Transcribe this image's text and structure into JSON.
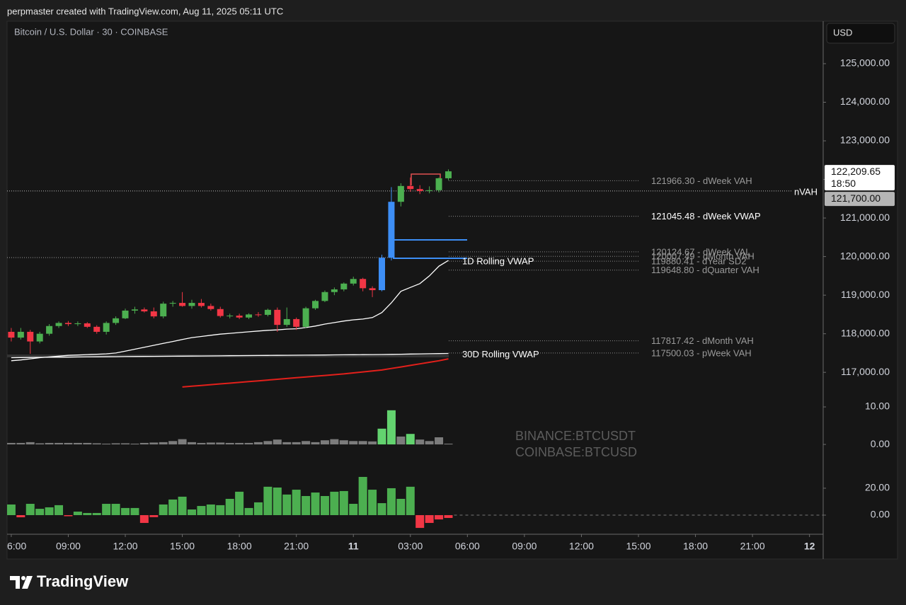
{
  "header": "perpmaster created with TradingView.com, Aug 11, 2025 05:11 UTC",
  "brand": "TradingView",
  "currency_button": "USD",
  "watermark": [
    "BINANCE:BTCUSDT",
    "COINBASE:BTCUSD"
  ],
  "chart_data": [
    {
      "type": "candlestick",
      "title": "Bitcoin / U.S. Dollar · 30 · COINBASE",
      "x": [
        6,
        6.5,
        7,
        7.5,
        8,
        8.5,
        9,
        9.5,
        10,
        10.5,
        11,
        11.5,
        12,
        12.5,
        13,
        13.5,
        14,
        14.5,
        15,
        15.5,
        16,
        16.5,
        17,
        17.5,
        18,
        18.5,
        19,
        19.5,
        20,
        20.5,
        21,
        21.5,
        22,
        22.5,
        23,
        23.5,
        24,
        24.5,
        25,
        25.5,
        26,
        26.5,
        27,
        27.5,
        28,
        28.5,
        29
      ],
      "open": [
        118050,
        117900,
        118050,
        117800,
        118000,
        118200,
        118280,
        118250,
        118270,
        118180,
        118050,
        118280,
        118400,
        118600,
        118630,
        118580,
        118450,
        118780,
        118800,
        118720,
        118800,
        118720,
        118640,
        118460,
        118470,
        118420,
        118500,
        118490,
        118620,
        118230,
        118380,
        118180,
        118660,
        118850,
        119080,
        119150,
        119300,
        119420,
        119180,
        119130,
        119970,
        121420,
        121830,
        121750,
        121700,
        121720,
        122030
      ],
      "high": [
        118150,
        118150,
        118100,
        118050,
        118250,
        118320,
        118330,
        118320,
        118300,
        118220,
        118320,
        118450,
        118650,
        118700,
        118680,
        118680,
        118830,
        118850,
        119080,
        118880,
        118900,
        118780,
        118700,
        118520,
        118520,
        118530,
        118560,
        118650,
        118680,
        118680,
        118420,
        118700,
        118880,
        119120,
        119200,
        119330,
        119480,
        119450,
        119230,
        120050,
        121800,
        121900,
        122050,
        121850,
        121820,
        122050,
        122260
      ],
      "low": [
        117800,
        117850,
        117480,
        117750,
        117950,
        118150,
        118200,
        118200,
        118150,
        118000,
        117980,
        118230,
        118380,
        118520,
        118550,
        118400,
        118400,
        118700,
        118700,
        118650,
        118680,
        118600,
        118420,
        118400,
        118380,
        118380,
        118440,
        118450,
        118050,
        118180,
        118100,
        118150,
        118620,
        118820,
        119000,
        119100,
        119250,
        119100,
        118950,
        119100,
        119900,
        121300,
        121680,
        121620,
        121640,
        121660,
        121980
      ],
      "close": [
        117900,
        118050,
        117800,
        118000,
        118200,
        118280,
        118250,
        118270,
        118180,
        118050,
        118280,
        118400,
        118600,
        118630,
        118580,
        118450,
        118780,
        118800,
        118720,
        118800,
        118720,
        118640,
        118460,
        118470,
        118420,
        118500,
        118490,
        118620,
        118230,
        118380,
        118180,
        118660,
        118850,
        119080,
        119150,
        119300,
        119420,
        119180,
        119130,
        119970,
        121420,
        121830,
        121750,
        121700,
        121720,
        122030,
        122209.65
      ],
      "colors": [
        "#f23645",
        "#4caf50",
        "#f23645",
        "#4caf50",
        "#4caf50",
        "#4caf50",
        "#f23645",
        "#4caf50",
        "#f23645",
        "#f23645",
        "#4caf50",
        "#4caf50",
        "#4caf50",
        "#4caf50",
        "#f23645",
        "#f23645",
        "#4caf50",
        "#4caf50",
        "#f23645",
        "#4caf50",
        "#f23645",
        "#f23645",
        "#f23645",
        "#4caf50",
        "#f23645",
        "#4caf50",
        "#f23645",
        "#4caf50",
        "#f23645",
        "#4caf50",
        "#f23645",
        "#4caf50",
        "#4caf50",
        "#4caf50",
        "#4caf50",
        "#4caf50",
        "#4caf50",
        "#f23645",
        "#f23645",
        "#3d8ef5",
        "#3d8ef5",
        "#4caf50",
        "#f23645",
        "#f23645",
        "#4caf50",
        "#4caf50",
        "#4caf50"
      ],
      "xlim": [
        5.78,
        48.72
      ],
      "xticks": [
        {
          "value": 6,
          "label": "6:00"
        },
        {
          "value": 9,
          "label": "09:00"
        },
        {
          "value": 12,
          "label": "12:00"
        },
        {
          "value": 15,
          "label": "15:00"
        },
        {
          "value": 18,
          "label": "18:00"
        },
        {
          "value": 21,
          "label": "21:00"
        },
        {
          "value": 24,
          "label": "11"
        },
        {
          "value": 27,
          "label": "03:00"
        },
        {
          "value": 30,
          "label": "06:00"
        },
        {
          "value": 33,
          "label": "09:00"
        },
        {
          "value": 36,
          "label": "12:00"
        },
        {
          "value": 39,
          "label": "15:00"
        },
        {
          "value": 42,
          "label": "18:00"
        },
        {
          "value": 45,
          "label": "21:00"
        },
        {
          "value": 48,
          "label": "12"
        }
      ],
      "ylim": [
        116600,
        126100
      ],
      "yticks": [
        {
          "value": 117000,
          "label": "117,000.00"
        },
        {
          "value": 118000,
          "label": "118,000.00"
        },
        {
          "value": 119000,
          "label": "119,000.00"
        },
        {
          "value": 120000,
          "label": "120,000.00"
        },
        {
          "value": 121000,
          "label": "121,000.00"
        },
        {
          "value": 122000,
          "label": "122,000.00"
        },
        {
          "value": 123000,
          "label": "123,000.00"
        },
        {
          "value": 124000,
          "label": "124,000.00"
        },
        {
          "value": 125000,
          "label": "125,000.00"
        }
      ],
      "lines": [
        {
          "name": "1D Rolling VWAP",
          "color": "#ffffff",
          "values": [
            117300,
            117320,
            117350,
            117380,
            117400,
            117420,
            117440,
            117450,
            117460,
            117470,
            117480,
            117500,
            117550,
            117600,
            117650,
            117700,
            117750,
            117800,
            117850,
            117900,
            117930,
            117960,
            117990,
            118010,
            118030,
            118050,
            118070,
            118090,
            118100,
            118120,
            118130,
            118160,
            118200,
            118250,
            118290,
            118330,
            118360,
            118380,
            118420,
            118550,
            118800,
            119100,
            119200,
            119300,
            119500,
            119750,
            119900
          ]
        },
        {
          "name": "30D Rolling VWAP",
          "color": "#ffffff",
          "values": [
            117380,
            117383,
            117385,
            117388,
            117390,
            117392,
            117395,
            117397,
            117400,
            117402,
            117404,
            117406,
            117408,
            117410,
            117412,
            117414,
            117416,
            117418,
            117420,
            117422,
            117424,
            117426,
            117428,
            117430,
            117432,
            117434,
            117436,
            117438,
            117440,
            117442,
            117444,
            117446,
            117448,
            117450,
            117452,
            117454,
            117456,
            117458,
            117460,
            117462,
            117466,
            117470,
            117474,
            117478,
            117482,
            117486,
            117490
          ]
        },
        {
          "color": "#e3201b",
          "values": [
            null,
            null,
            null,
            null,
            null,
            null,
            null,
            null,
            null,
            null,
            null,
            null,
            null,
            null,
            null,
            null,
            null,
            null,
            116620,
            116640,
            116660,
            116680,
            116700,
            116720,
            116740,
            116760,
            116780,
            116800,
            116820,
            116840,
            116860,
            116880,
            116900,
            116920,
            116940,
            116960,
            116985,
            117010,
            117035,
            117060,
            117100,
            117140,
            117180,
            117220,
            117260,
            117300,
            117350
          ]
        }
      ],
      "levels": [
        {
          "value": 121966.3,
          "label": "121966.30 - dWeek VAH",
          "color": "#9a9a9a"
        },
        {
          "value": 121045.48,
          "label": "121045.48 - dWeek VWAP",
          "color": "#ffffff"
        },
        {
          "value": 120124.67,
          "label": "120124.67 - dWeek VAL",
          "color": "#9a9a9a"
        },
        {
          "value": 120007.49,
          "label": "120007.49 - dMonth VAH",
          "color": "#9a9a9a"
        },
        {
          "value": 119880.41,
          "label": "119880.41 - dYear SD2",
          "color": "#9a9a9a"
        },
        {
          "value": 119648.8,
          "label": "119648.80 - dQuarter VAH",
          "color": "#9a9a9a"
        },
        {
          "value": 117817.42,
          "label": "117817.42 - dMonth VAH",
          "color": "#9a9a9a"
        },
        {
          "value": 117500.03,
          "label": "117500.03 - pWeek VAH",
          "color": "#9a9a9a"
        }
      ],
      "reference_line": {
        "value": 121700,
        "name": "nVAH",
        "color": "#bdbdbd"
      },
      "price_tags": [
        {
          "value": 122209.65,
          "label": "122,209.65",
          "countdown": "18:50",
          "color": "#ffffff"
        },
        {
          "value": 121700,
          "label": "121,700.00",
          "color": "#b5b5b5"
        }
      ]
    },
    {
      "type": "bar",
      "values": [
        0.4,
        0.4,
        0.6,
        0.3,
        0.4,
        0.4,
        0.4,
        0.4,
        0.4,
        0.3,
        0.2,
        0.3,
        0.3,
        0.2,
        0.4,
        0.5,
        0.6,
        0.9,
        1.4,
        0.6,
        0.4,
        0.5,
        0.5,
        0.4,
        0.4,
        0.4,
        0.6,
        0.9,
        1.3,
        0.6,
        0.6,
        0.9,
        0.6,
        1.1,
        1.4,
        1.1,
        0.9,
        0.9,
        0.8,
        4.2,
        9.1,
        2.1,
        2.8,
        1.3,
        0.9,
        1.9,
        0.2
      ],
      "colors": [
        "#7c7c7c",
        "#7c7c7c",
        "#7c7c7c",
        "#7c7c7c",
        "#7c7c7c",
        "#7c7c7c",
        "#7c7c7c",
        "#7c7c7c",
        "#7c7c7c",
        "#7c7c7c",
        "#7c7c7c",
        "#7c7c7c",
        "#7c7c7c",
        "#7c7c7c",
        "#7c7c7c",
        "#7c7c7c",
        "#7c7c7c",
        "#7c7c7c",
        "#7c7c7c",
        "#7c7c7c",
        "#7c7c7c",
        "#7c7c7c",
        "#7c7c7c",
        "#7c7c7c",
        "#7c7c7c",
        "#7c7c7c",
        "#7c7c7c",
        "#7c7c7c",
        "#7c7c7c",
        "#7c7c7c",
        "#7c7c7c",
        "#7c7c7c",
        "#7c7c7c",
        "#7c7c7c",
        "#7c7c7c",
        "#7c7c7c",
        "#7c7c7c",
        "#7c7c7c",
        "#7c7c7c",
        "#63d36f",
        "#63d36f",
        "#7c7c7c",
        "#63d36f",
        "#7c7c7c",
        "#7c7c7c",
        "#7c7c7c",
        "#7c7c7c"
      ],
      "ylim": [
        -6.4,
        15.1
      ],
      "yticks": [
        {
          "value": 10,
          "label": "10.00"
        },
        {
          "value": 0,
          "label": "0.00"
        }
      ]
    },
    {
      "type": "bar",
      "values": [
        7.9,
        -1.6,
        8.4,
        4.7,
        5.8,
        7.4,
        -0.8,
        2.6,
        1.6,
        1.6,
        8.4,
        8.4,
        5.3,
        5.3,
        -5.8,
        -1.5,
        7.9,
        11.6,
        13.7,
        4.2,
        6.8,
        7.9,
        7.4,
        12.1,
        17.4,
        5.3,
        9.5,
        21.1,
        20.5,
        15.3,
        18.9,
        14.2,
        16.8,
        14.2,
        17.4,
        17.9,
        8.4,
        28.4,
        18.9,
        8.9,
        20.0,
        12.1,
        21.1,
        -9.5,
        -5.8,
        -3.2,
        -2.1
      ],
      "positive_color": "#4caf50",
      "negative_color": "#f23645",
      "ylim": [
        -14.2,
        34.7
      ],
      "yticks": [
        {
          "value": 20,
          "label": "20.00"
        },
        {
          "value": 0,
          "label": "0.00"
        }
      ]
    }
  ]
}
